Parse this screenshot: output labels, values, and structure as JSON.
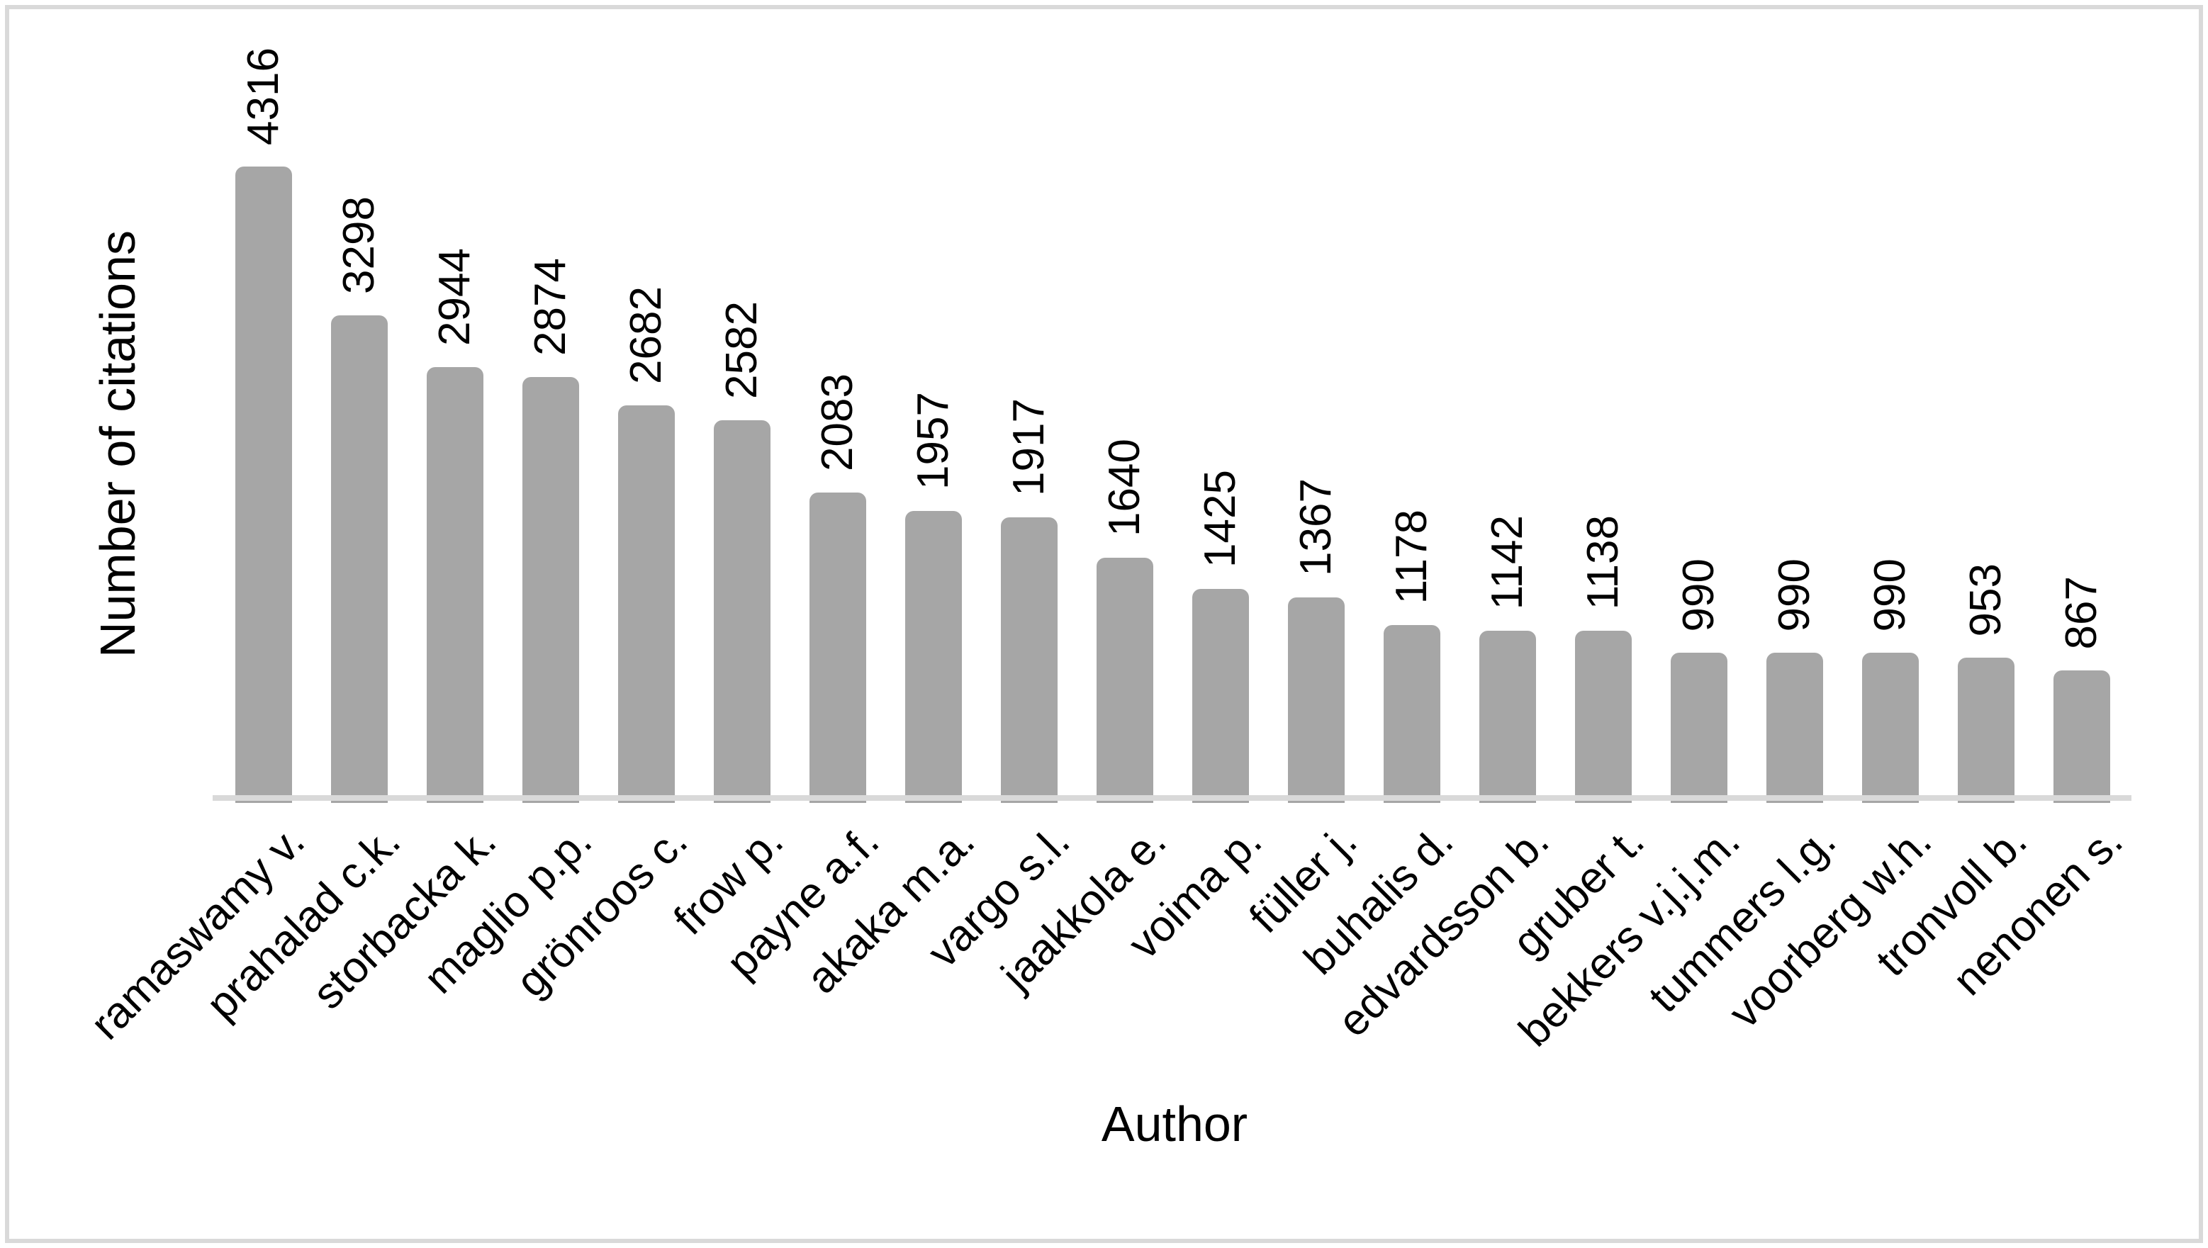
{
  "chart_data": {
    "type": "bar",
    "title": "",
    "xlabel": "Author",
    "ylabel": "Number of citations",
    "categories": [
      "ramaswamy v.",
      "prahalad c.k.",
      "storbacka k.",
      "maglio p.p.",
      "grönroos c.",
      "frow p.",
      "payne a.f.",
      "akaka m.a.",
      "vargo s.l.",
      "jaakkola e.",
      "voima p.",
      "füller j.",
      "buhalis d.",
      "edvardsson b.",
      "gruber t.",
      "bekkers v.j.j.m.",
      "tummers l.g.",
      "voorberg w.h.",
      "tronvoll b.",
      "nenonen s."
    ],
    "values": [
      4316,
      3298,
      2944,
      2874,
      2682,
      2582,
      2083,
      1957,
      1917,
      1640,
      1425,
      1367,
      1178,
      1142,
      1138,
      990,
      990,
      990,
      953,
      867
    ],
    "data_labels_shown": true,
    "data_label_rotation_deg": 90,
    "category_label_rotation_deg": 45,
    "ylim": [
      0,
      4316
    ],
    "grid": false,
    "legend": false,
    "bar_color": "#a6a6a6",
    "baseline_color": "#d9d9d9",
    "frame_border_color": "#d9d9d9",
    "text_color": "#000000"
  }
}
